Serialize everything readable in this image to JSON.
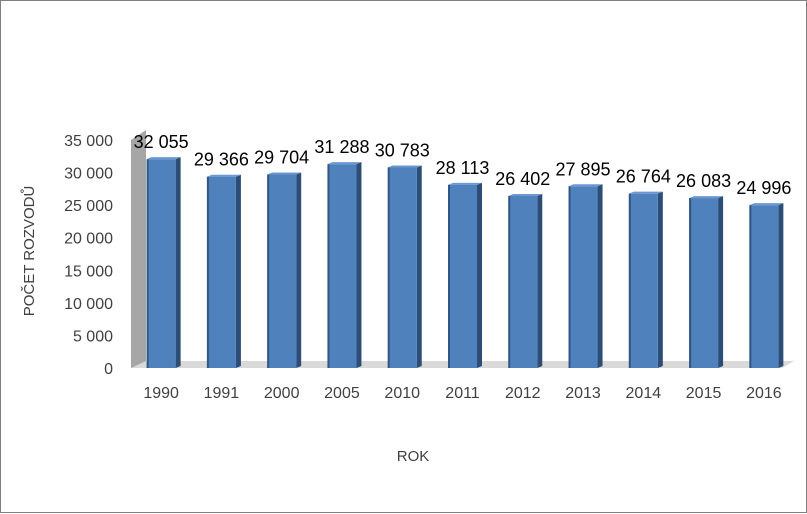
{
  "chart_data": {
    "type": "bar",
    "title": "",
    "xlabel": "ROK",
    "ylabel": "POČET ROZVODŮ",
    "ylim": [
      0,
      35000
    ],
    "ytick_labels": [
      "0",
      "5 000",
      "10 000",
      "15 000",
      "20 000",
      "25 000",
      "30 000",
      "35 000"
    ],
    "ytick_values": [
      0,
      5000,
      10000,
      15000,
      20000,
      25000,
      30000,
      35000
    ],
    "categories": [
      "1990",
      "1991",
      "2000",
      "2005",
      "2010",
      "2011",
      "2012",
      "2013",
      "2014",
      "2015",
      "2016"
    ],
    "values": [
      32055,
      29366,
      29704,
      31288,
      30783,
      28113,
      26402,
      27895,
      26764,
      26083,
      24996
    ],
    "data_labels": [
      "32 055",
      "29 366",
      "29 704",
      "31 288",
      "30 783",
      "28 113",
      "26 402",
      "27 895",
      "26 764",
      "26 083",
      "24 996"
    ],
    "grid": false,
    "legend": "none",
    "colors": {
      "bar_front": "#4f81bd",
      "bar_side": "#2c4d75",
      "bar_top": "#6d97d0",
      "wall": "#a6a6a6",
      "floor": "#d9d9d9"
    }
  }
}
